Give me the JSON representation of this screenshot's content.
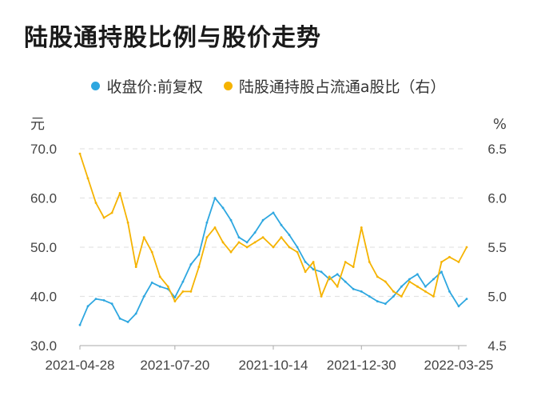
{
  "chart_data": {
    "type": "line",
    "title": "陆股通持股比例与股价走势",
    "left_unit": "元",
    "right_unit": "%",
    "left_ylim": [
      30,
      70
    ],
    "right_ylim": [
      4.5,
      6.5
    ],
    "left_ticks": [
      "70.0",
      "60.0",
      "50.0",
      "40.0",
      "30.0"
    ],
    "right_ticks": [
      "6.5",
      "6.0",
      "5.5",
      "5.0",
      "4.5"
    ],
    "x_tick_labels": [
      "2021-04-28",
      "2021-07-20",
      "2021-10-14",
      "2021-12-30",
      "2022-03-25"
    ],
    "grid": true,
    "legend_position": "top",
    "series": [
      {
        "name": "收盘价:前复权",
        "axis": "left",
        "color": "#2ea7e0",
        "x": [
          "2021-04-28",
          "2021-05-05",
          "2021-05-12",
          "2021-05-19",
          "2021-05-26",
          "2021-06-02",
          "2021-06-09",
          "2021-06-16",
          "2021-06-23",
          "2021-06-30",
          "2021-07-07",
          "2021-07-14",
          "2021-07-20",
          "2021-07-27",
          "2021-08-03",
          "2021-08-10",
          "2021-08-17",
          "2021-08-24",
          "2021-08-31",
          "2021-09-07",
          "2021-09-14",
          "2021-09-21",
          "2021-09-28",
          "2021-10-05",
          "2021-10-14",
          "2021-10-21",
          "2021-10-28",
          "2021-11-04",
          "2021-11-11",
          "2021-11-18",
          "2021-11-25",
          "2021-12-02",
          "2021-12-09",
          "2021-12-16",
          "2021-12-23",
          "2021-12-30",
          "2022-01-06",
          "2022-01-13",
          "2022-01-20",
          "2022-01-27",
          "2022-02-03",
          "2022-02-10",
          "2022-02-17",
          "2022-02-24",
          "2022-03-03",
          "2022-03-10",
          "2022-03-17",
          "2022-03-25",
          "2022-04-01"
        ],
        "values": [
          34.2,
          38.0,
          39.5,
          39.2,
          38.5,
          35.5,
          34.8,
          36.5,
          40.0,
          42.8,
          42.0,
          41.5,
          39.8,
          43.0,
          46.5,
          48.5,
          55.0,
          60.0,
          58.0,
          55.5,
          52.0,
          51.0,
          53.0,
          55.5,
          57.0,
          54.5,
          52.5,
          50.0,
          47.0,
          45.5,
          45.0,
          43.5,
          44.5,
          43.0,
          41.5,
          41.0,
          40.0,
          39.0,
          38.5,
          40.0,
          42.0,
          43.5,
          44.5,
          42.0,
          43.5,
          45.0,
          41.0,
          38.0,
          39.5
        ]
      },
      {
        "name": "陆股通持股占流通a股比（右）",
        "axis": "right",
        "color": "#f5b301",
        "x": [
          "2021-04-28",
          "2021-05-05",
          "2021-05-12",
          "2021-05-19",
          "2021-05-26",
          "2021-06-02",
          "2021-06-09",
          "2021-06-16",
          "2021-06-23",
          "2021-06-30",
          "2021-07-07",
          "2021-07-14",
          "2021-07-20",
          "2021-07-27",
          "2021-08-03",
          "2021-08-10",
          "2021-08-17",
          "2021-08-24",
          "2021-08-31",
          "2021-09-07",
          "2021-09-14",
          "2021-09-21",
          "2021-09-28",
          "2021-10-05",
          "2021-10-14",
          "2021-10-21",
          "2021-10-28",
          "2021-11-04",
          "2021-11-11",
          "2021-11-18",
          "2021-11-25",
          "2021-12-02",
          "2021-12-09",
          "2021-12-16",
          "2021-12-23",
          "2021-12-30",
          "2022-01-06",
          "2022-01-13",
          "2022-01-20",
          "2022-01-27",
          "2022-02-03",
          "2022-02-10",
          "2022-02-17",
          "2022-02-24",
          "2022-03-03",
          "2022-03-10",
          "2022-03-17",
          "2022-03-25",
          "2022-04-01"
        ],
        "values": [
          6.45,
          6.2,
          5.95,
          5.8,
          5.85,
          6.05,
          5.75,
          5.3,
          5.6,
          5.45,
          5.2,
          5.1,
          4.95,
          5.05,
          5.05,
          5.3,
          5.6,
          5.7,
          5.55,
          5.45,
          5.55,
          5.5,
          5.55,
          5.6,
          5.5,
          5.6,
          5.5,
          5.45,
          5.25,
          5.35,
          5.0,
          5.2,
          5.1,
          5.35,
          5.3,
          5.7,
          5.35,
          5.2,
          5.15,
          5.05,
          5.0,
          5.15,
          5.1,
          5.05,
          5.0,
          5.35,
          5.4,
          5.35,
          5.5
        ]
      }
    ]
  }
}
